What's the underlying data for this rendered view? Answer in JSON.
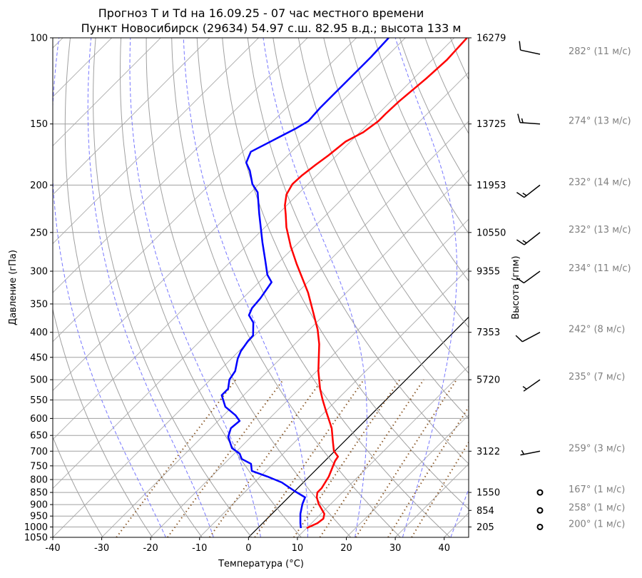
{
  "chart_data": {
    "type": "line",
    "subtype": "skew-t log-p diagram",
    "title": [
      "Прогноз T и Td на 16.09.25 - 07 час местного времени",
      "Пункт Новосибирск (29634) 54.97 с.ш. 82.95 в.д.; высота 133 м"
    ],
    "xlabel": "Температура (°C)",
    "ylabel": "Давление (гПа)",
    "y2label": "Высота (гпм)",
    "xlim": [
      -40,
      45
    ],
    "ylim": [
      1050,
      100
    ],
    "grid": true,
    "x_ticks": [
      "-40",
      "-30",
      "-20",
      "-10",
      "0",
      "10",
      "20",
      "30",
      "40"
    ],
    "y_ticks": [
      "100",
      "150",
      "200",
      "250",
      "300",
      "350",
      "400",
      "450",
      "500",
      "550",
      "600",
      "650",
      "700",
      "750",
      "800",
      "850",
      "900",
      "950",
      "1000",
      "1050"
    ],
    "height_labels": [
      {
        "p": 100,
        "label": "16279"
      },
      {
        "p": 150,
        "label": "13725"
      },
      {
        "p": 200,
        "label": "11953"
      },
      {
        "p": 250,
        "label": "10550"
      },
      {
        "p": 300,
        "label": "9355"
      },
      {
        "p": 400,
        "label": "7353"
      },
      {
        "p": 500,
        "label": "5720"
      },
      {
        "p": 700,
        "label": "3122"
      },
      {
        "p": 850,
        "label": "1550"
      },
      {
        "p": 925,
        "label": "854"
      },
      {
        "p": 1000,
        "label": "205"
      }
    ],
    "background": {
      "isotherm_step_c": 10,
      "highlight_isotherm_c": 0,
      "dry_adiabats_theta_k": [
        230,
        240,
        250,
        260,
        270,
        280,
        290,
        300,
        310,
        320,
        330,
        340,
        350,
        360,
        370,
        380,
        390,
        400,
        410,
        420,
        430,
        440,
        450,
        460,
        470,
        480,
        490,
        500
      ],
      "moist_adiabats_start_c": [
        -20,
        -10,
        0,
        10,
        20,
        30,
        40
      ],
      "mixing_ratios": [
        0.0004,
        0.001,
        0.002,
        0.004,
        0.007,
        0.01,
        0.016,
        0.024,
        0.032
      ],
      "mixing_top_p": 500
    },
    "colors": {
      "T": "#ff0000",
      "Td": "#0000ff",
      "grid": "#a0a0a0",
      "moist": "#7777ff",
      "mixing": "#8b5a2b",
      "wind_label": "#808080"
    },
    "series": [
      {
        "name": "T",
        "unit": "°C",
        "points": [
          [
            1005,
            10.0
          ],
          [
            982,
            11.2
          ],
          [
            962,
            11.5
          ],
          [
            940,
            10.7
          ],
          [
            897,
            7.5
          ],
          [
            870,
            5.8
          ],
          [
            850,
            4.9
          ],
          [
            833,
            4.9
          ],
          [
            789,
            4.0
          ],
          [
            733,
            2.1
          ],
          [
            718,
            1.8
          ],
          [
            699,
            -0.2
          ],
          [
            672,
            -2.1
          ],
          [
            628,
            -5.3
          ],
          [
            576,
            -10.3
          ],
          [
            549,
            -13.0
          ],
          [
            522,
            -15.7
          ],
          [
            480,
            -19.7
          ],
          [
            423,
            -25.0
          ],
          [
            395,
            -28.3
          ],
          [
            367,
            -32.3
          ],
          [
            332,
            -37.8
          ],
          [
            290,
            -46.0
          ],
          [
            267,
            -50.8
          ],
          [
            244,
            -55.6
          ],
          [
            229,
            -58.5
          ],
          [
            220,
            -60.4
          ],
          [
            209,
            -62.3
          ],
          [
            199,
            -63.2
          ],
          [
            191,
            -63.0
          ],
          [
            182,
            -62.4
          ],
          [
            174,
            -61.7
          ],
          [
            163,
            -61.0
          ],
          [
            156,
            -59.3
          ],
          [
            148,
            -58.5
          ],
          [
            143,
            -58.5
          ],
          [
            135,
            -58.3
          ],
          [
            121,
            -57.4
          ],
          [
            111,
            -57.0
          ],
          [
            100,
            -57.4
          ]
        ]
      },
      {
        "name": "Td",
        "unit": "°C",
        "points": [
          [
            1005,
            8.8
          ],
          [
            982,
            7.7
          ],
          [
            940,
            5.8
          ],
          [
            897,
            4.2
          ],
          [
            870,
            3.4
          ],
          [
            844,
            -0.1
          ],
          [
            811,
            -4.4
          ],
          [
            789,
            -8.5
          ],
          [
            768,
            -12.9
          ],
          [
            743,
            -14.5
          ],
          [
            726,
            -17.4
          ],
          [
            708,
            -18.9
          ],
          [
            690,
            -21.6
          ],
          [
            654,
            -24.7
          ],
          [
            628,
            -25.9
          ],
          [
            607,
            -25.6
          ],
          [
            591,
            -27.6
          ],
          [
            568,
            -31.4
          ],
          [
            538,
            -34.5
          ],
          [
            522,
            -34.5
          ],
          [
            500,
            -36.1
          ],
          [
            480,
            -36.7
          ],
          [
            453,
            -38.7
          ],
          [
            437,
            -39.6
          ],
          [
            417,
            -40.2
          ],
          [
            406,
            -40.3
          ],
          [
            382,
            -42.9
          ],
          [
            369,
            -45.3
          ],
          [
            357,
            -46.1
          ],
          [
            341,
            -46.4
          ],
          [
            316,
            -47.4
          ],
          [
            305,
            -49.8
          ],
          [
            286,
            -53.0
          ],
          [
            262,
            -57.4
          ],
          [
            229,
            -63.9
          ],
          [
            207,
            -68.6
          ],
          [
            199,
            -71.4
          ],
          [
            187,
            -74.6
          ],
          [
            180,
            -77.0
          ],
          [
            171,
            -78.3
          ],
          [
            160,
            -75.6
          ],
          [
            153,
            -73.8
          ],
          [
            148,
            -72.8
          ],
          [
            139,
            -73.1
          ],
          [
            121,
            -73.1
          ],
          [
            109.5,
            -73.1
          ],
          [
            100,
            -73.4
          ]
        ]
      }
    ],
    "wind": [
      {
        "p": 100,
        "dir": 282,
        "speed": 11,
        "label": "282° (11 м/с)"
      },
      {
        "p": 150,
        "dir": 274,
        "speed": 13,
        "label": "274° (13 м/с)"
      },
      {
        "p": 200,
        "dir": 232,
        "speed": 14,
        "label": "232° (14 м/с)"
      },
      {
        "p": 250,
        "dir": 232,
        "speed": 13,
        "label": "232° (13 м/с)"
      },
      {
        "p": 300,
        "dir": 234,
        "speed": 11,
        "label": "234° (11 м/с)"
      },
      {
        "p": 400,
        "dir": 242,
        "speed": 8,
        "label": "242° (8 м/с)"
      },
      {
        "p": 500,
        "dir": 235,
        "speed": 7,
        "label": "235° (7 м/с)"
      },
      {
        "p": 700,
        "dir": 259,
        "speed": 3,
        "label": "259° (3 м/с)"
      },
      {
        "p": 850,
        "dir": 167,
        "speed": 1,
        "label": "167° (1 м/с)"
      },
      {
        "p": 925,
        "dir": 258,
        "speed": 1,
        "label": "258° (1 м/с)"
      },
      {
        "p": 1000,
        "dir": 200,
        "speed": 1,
        "label": "200° (1 м/с)"
      }
    ]
  }
}
